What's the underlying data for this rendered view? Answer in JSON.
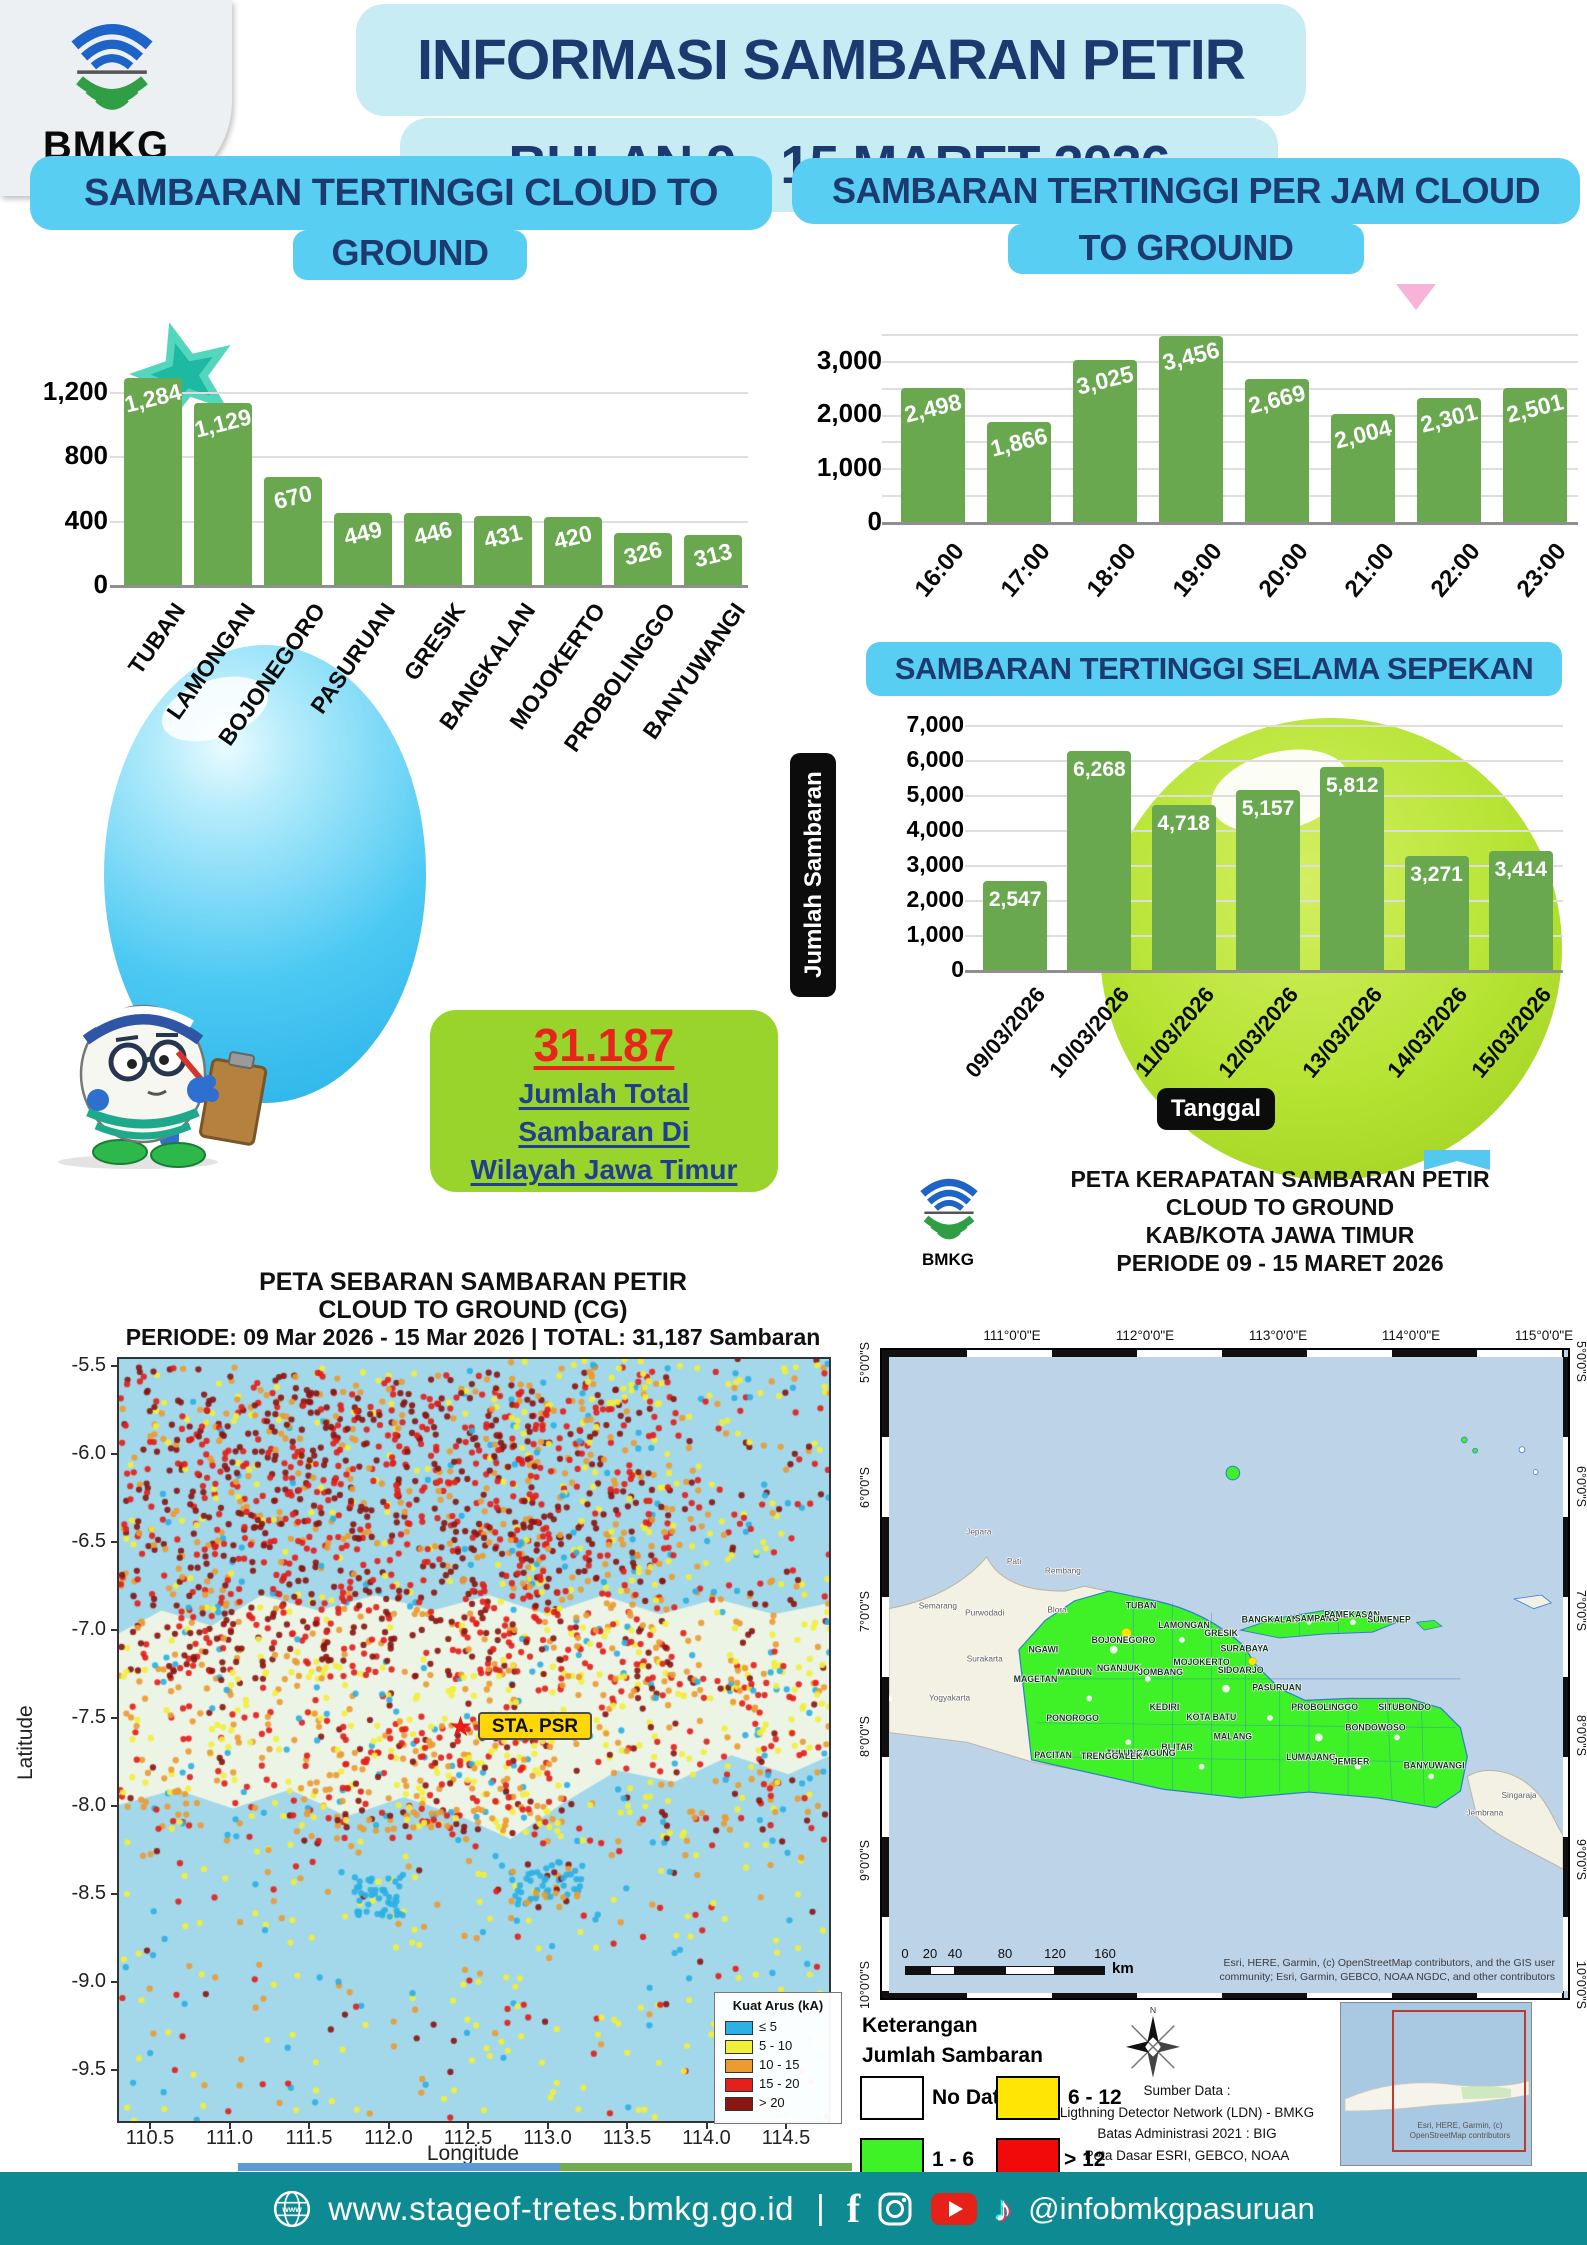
{
  "logo": {
    "text": "BMKG"
  },
  "header": {
    "line1": "INFORMASI SAMBARAN PETIR",
    "line2": "BULAN 9 - 15 MARET 2026"
  },
  "badge": {
    "value": "31.187",
    "line1": "Jumlah Total",
    "line2": "Sambaran Di",
    "line3": "Wilayah Jawa Timur"
  },
  "chart_data": [
    {
      "type": "bar",
      "id": "cities",
      "title_line1": "SAMBARAN TERTINGGI  CLOUD TO",
      "title_line2": "GROUND",
      "categories": [
        "TUBAN",
        "LAMONGAN",
        "BOJONEGORO",
        "PASURUAN",
        "GRESIK",
        "BANGKALAN",
        "MOJOKERTO",
        "PROBOLINGGO",
        "BANYUWANGI"
      ],
      "values": [
        1284,
        1129,
        670,
        449,
        446,
        431,
        420,
        326,
        313
      ],
      "value_labels": [
        "1,284",
        "1,129",
        "670",
        "449",
        "446",
        "431",
        "420",
        "326",
        "313"
      ],
      "ylim": [
        0,
        1200
      ],
      "yticks": [
        {
          "v": 0,
          "t": "0"
        },
        {
          "v": 400,
          "t": "400"
        },
        {
          "v": 800,
          "t": "800"
        },
        {
          "v": 1200,
          "t": "1,200"
        }
      ]
    },
    {
      "type": "bar",
      "id": "hourly",
      "title_line1": "SAMBARAN TERTINGGI PER JAM CLOUD",
      "title_line2": "TO GROUND",
      "categories": [
        "16:00",
        "17:00",
        "18:00",
        "19:00",
        "20:00",
        "21:00",
        "22:00",
        "23:00"
      ],
      "values": [
        2498,
        1866,
        3025,
        3456,
        2669,
        2004,
        2301,
        2501
      ],
      "value_labels": [
        "2,498",
        "1,866",
        "3,025",
        "3,456",
        "2,669",
        "2,004",
        "2,301",
        "2,501"
      ],
      "ylim": [
        0,
        3500
      ],
      "yticks": [
        {
          "v": 0,
          "t": "0"
        },
        {
          "v": 500
        },
        {
          "v": 1000,
          "t": "1,000"
        },
        {
          "v": 1500
        },
        {
          "v": 2000,
          "t": "2,000"
        },
        {
          "v": 2500
        },
        {
          "v": 3000,
          "t": "3,000"
        },
        {
          "v": 3500
        }
      ]
    },
    {
      "type": "bar",
      "id": "weekly",
      "title_line1": "SAMBARAN TERTINGGI SELAMA SEPEKAN",
      "xlabel": "Tanggal",
      "ylabel": "Jumlah Sambaran",
      "categories": [
        "09/03/2026",
        "10/03/2026",
        "11/03/2026",
        "12/03/2026",
        "13/03/2026",
        "14/03/2026",
        "15/03/2026"
      ],
      "values": [
        2547,
        6268,
        4718,
        5157,
        5812,
        3271,
        3414
      ],
      "value_labels": [
        "2,547",
        "6,268",
        "4,718",
        "5,157",
        "5,812",
        "3,271",
        "3,414"
      ],
      "ylim": [
        0,
        7000
      ],
      "yticks": [
        {
          "v": 0,
          "t": "0"
        },
        {
          "v": 1000,
          "t": "1,000"
        },
        {
          "v": 2000,
          "t": "2,000"
        },
        {
          "v": 3000,
          "t": "3,000"
        },
        {
          "v": 4000,
          "t": "4,000"
        },
        {
          "v": 5000,
          "t": "5,000"
        },
        {
          "v": 6000,
          "t": "6,000"
        },
        {
          "v": 7000,
          "t": "7,000"
        }
      ]
    },
    {
      "type": "scatter",
      "id": "cg_spread_map",
      "title_line1": "PETA SEBARAN SAMBARAN PETIR",
      "title_line2": "CLOUD TO GROUND (CG)",
      "title_line3": "PERIODE: 09 Mar 2026 - 15 Mar 2026 | TOTAL: 31,187 Sambaran",
      "xlabel": "Longitude",
      "ylabel": "Latitude",
      "xticks": [
        "110.5",
        "111.0",
        "111.5",
        "112.0",
        "112.5",
        "113.0",
        "113.5",
        "114.0",
        "114.5"
      ],
      "yticks": [
        "-5.5",
        "-6.0",
        "-6.5",
        "-7.0",
        "-7.5",
        "-8.0",
        "-8.5",
        "-9.0",
        "-9.5"
      ],
      "legend": {
        "title": "Kuat Arus (kA)",
        "entries": [
          {
            "label": "≤ 5",
            "color": "#2eb0e4"
          },
          {
            "label": "5 - 10",
            "color": "#f2ef39"
          },
          {
            "label": "10 - 15",
            "color": "#ec9b31"
          },
          {
            "label": "15 - 20",
            "color": "#e3201b"
          },
          {
            "label": "> 20",
            "color": "#8a1712"
          }
        ]
      },
      "station_label": "STA. PSR",
      "seed": 20260309,
      "point_regions": [
        {
          "count": 1200,
          "x": [
            0.0,
            0.78
          ],
          "y": [
            0.01,
            0.42
          ],
          "colors": {
            "#8a1712": 30,
            "#e3201b": 32,
            "#ec9b31": 20,
            "#f2ef39": 13,
            "#2eb0e4": 5
          }
        },
        {
          "count": 420,
          "x": [
            0.55,
            1.0
          ],
          "y": [
            0.0,
            0.45
          ],
          "colors": {
            "#f2ef39": 30,
            "#ec9b31": 24,
            "#e3201b": 20,
            "#8a1712": 12,
            "#2eb0e4": 14
          }
        },
        {
          "count": 700,
          "x": [
            0.0,
            1.0
          ],
          "y": [
            0.4,
            0.64
          ],
          "colors": {
            "#ec9b31": 27,
            "#f2ef39": 28,
            "#e3201b": 22,
            "#8a1712": 11,
            "#2eb0e4": 12
          }
        },
        {
          "count": 300,
          "x": [
            0.0,
            1.0
          ],
          "y": [
            0.64,
            1.0
          ],
          "colors": {
            "#f2ef39": 38,
            "#2eb0e4": 23,
            "#ec9b31": 20,
            "#e3201b": 10,
            "#8a1712": 9
          }
        },
        {
          "count": 430,
          "x": [
            0.08,
            0.62
          ],
          "y": [
            0.04,
            0.4
          ],
          "colors": {
            "#8a1712": 55,
            "#e3201b": 38,
            "#ec9b31": 7
          }
        },
        {
          "count": 170,
          "x": [
            0.3,
            0.62
          ],
          "y": [
            0.48,
            0.62
          ],
          "colors": {
            "#e3201b": 30,
            "#ec9b31": 35,
            "#f2ef39": 25,
            "#8a1712": 10
          }
        },
        {
          "count": 45,
          "x": [
            0.33,
            0.4
          ],
          "y": [
            0.68,
            0.73
          ],
          "colors": {
            "#2eb0e4": 100
          }
        },
        {
          "count": 60,
          "x": [
            0.55,
            0.65
          ],
          "y": [
            0.66,
            0.72
          ],
          "colors": {
            "#2eb0e4": 55,
            "#ec9b31": 25,
            "#8a1712": 20
          }
        }
      ]
    },
    {
      "type": "map",
      "id": "density_map",
      "title_line1": "PETA KERAPATAN SAMBARAN PETIR",
      "title_line2": "CLOUD TO GROUND",
      "title_line3": "KAB/KOTA JAWA TIMUR",
      "title_line4": "PERIODE 09 - 15 MARET 2026",
      "top_labels": [
        "111°0'0\"E",
        "112°0'0\"E",
        "113°0'0\"E",
        "114°0'0\"E",
        "115°0'0\"E"
      ],
      "side_labels": [
        "5°0'0\"S",
        "6°0'0\"S",
        "7°0'0\"S",
        "8°0'0\"S",
        "9°0'0\"S",
        "10°0'0\"S"
      ],
      "legend_title1": "Keterangan",
      "legend_title2": "Jumlah Sambaran",
      "legend_entries": [
        {
          "label": "No Data",
          "color": "#ffffff"
        },
        {
          "label": "6 - 12",
          "color": "#ffe604"
        },
        {
          "label": "1 - 6",
          "color": "#3ef227"
        },
        {
          "label": "> 12",
          "color": "#f20a0a"
        }
      ],
      "scalebar_ticks": [
        "0",
        "20",
        "40",
        "80",
        "120",
        "160"
      ],
      "scalebar_unit": "km",
      "source_line1": "Sumber Data :",
      "source_line2": "Ligthning Detector Network (LDN) - BMKG",
      "source_line3": "Batas Administrasi 2021  : BIG",
      "source_line4": "Peta Dasar ESRI, GEBCO, NOAA",
      "esri_line1": "Esri, HERE, Garmin, (c) OpenStreetMap contributors, and the GIS user",
      "esri_line2": "community; Esri, Garmin, GEBCO, NOAA NGDC, and other contributors",
      "inset_esri": "Esri, HERE, Garmin, (c) OpenStreetMap contributors",
      "place_labels": [
        {
          "t": "TUBAN",
          "x": 258,
          "y": 258
        },
        {
          "t": "LAMONGAN",
          "x": 302,
          "y": 278
        },
        {
          "t": "GRESIK",
          "x": 340,
          "y": 286
        },
        {
          "t": "BOJONEGORO",
          "x": 240,
          "y": 293
        },
        {
          "t": "NGAWI",
          "x": 158,
          "y": 303
        },
        {
          "t": "MADIUN",
          "x": 190,
          "y": 326
        },
        {
          "t": "MAGETAN",
          "x": 150,
          "y": 333
        },
        {
          "t": "NGANJUK",
          "x": 235,
          "y": 322
        },
        {
          "t": "JOMBANG",
          "x": 278,
          "y": 326
        },
        {
          "t": "MOJOKERTO",
          "x": 320,
          "y": 316
        },
        {
          "t": "SURABAYA",
          "x": 364,
          "y": 302
        },
        {
          "t": "SIDOARJO",
          "x": 360,
          "y": 324
        },
        {
          "t": "BANGKALAN",
          "x": 390,
          "y": 272
        },
        {
          "t": "SAMPANG",
          "x": 438,
          "y": 271
        },
        {
          "t": "PAMEKASAN",
          "x": 474,
          "y": 267
        },
        {
          "t": "SUMENEP",
          "x": 512,
          "y": 272
        },
        {
          "t": "PASURUAN",
          "x": 397,
          "y": 342
        },
        {
          "t": "PROBOLINGGO",
          "x": 446,
          "y": 362
        },
        {
          "t": "SITUBONDO",
          "x": 528,
          "y": 362
        },
        {
          "t": "BONDOWOSO",
          "x": 498,
          "y": 383
        },
        {
          "t": "LUMAJANG",
          "x": 432,
          "y": 413
        },
        {
          "t": "JEMBER",
          "x": 473,
          "y": 418
        },
        {
          "t": "BANYUWANGI",
          "x": 558,
          "y": 422
        },
        {
          "t": "MALANG",
          "x": 352,
          "y": 392
        },
        {
          "t": "KOTA BATU",
          "x": 330,
          "y": 372
        },
        {
          "t": "KEDIRI",
          "x": 282,
          "y": 362
        },
        {
          "t": "BLITAR",
          "x": 295,
          "y": 403
        },
        {
          "t": "TULUNGAGUNG",
          "x": 258,
          "y": 409
        },
        {
          "t": "TRENGGALEK",
          "x": 228,
          "y": 412
        },
        {
          "t": "PONOROGO",
          "x": 188,
          "y": 373
        },
        {
          "t": "PACITAN",
          "x": 168,
          "y": 411
        },
        {
          "t": "Jepara",
          "x": 92,
          "y": 182,
          "c": "w"
        },
        {
          "t": "Pati",
          "x": 128,
          "y": 212,
          "c": "w"
        },
        {
          "t": "Rembang",
          "x": 178,
          "y": 222,
          "c": "w"
        },
        {
          "t": "Blora",
          "x": 172,
          "y": 262,
          "c": "w"
        },
        {
          "t": "Semarang",
          "x": 50,
          "y": 258,
          "c": "w"
        },
        {
          "t": "Purwodadi",
          "x": 98,
          "y": 265,
          "c": "w"
        },
        {
          "t": "Surakarta",
          "x": 98,
          "y": 312,
          "c": "w"
        },
        {
          "t": "Yogyakarta",
          "x": 62,
          "y": 352,
          "c": "w"
        },
        {
          "t": "Singaraja",
          "x": 645,
          "y": 452,
          "c": "w"
        },
        {
          "t": "Jembrana",
          "x": 610,
          "y": 470,
          "c": "w"
        }
      ]
    }
  ],
  "footer": {
    "website": "www.stageof-tretes.bmkg.go.id",
    "separator": "|",
    "handle": "@infobmkgpasuruan"
  },
  "colors": {
    "accent_cyan": "#58cef2",
    "header_cyan": "#c7ecf4",
    "navy": "#1d3a70",
    "bar_green": "#6aa850",
    "lime": "#b5e332",
    "balloon_blue": "#4cc9f3",
    "badge_green": "#99d42c",
    "badge_red": "#e8251c",
    "footer_teal": "#0e8a92",
    "divider_blue": "#5b9bd5",
    "divider_green": "#6fae4b",
    "ej_green": "#3ef227",
    "sea_blue": "#bdd3e8"
  }
}
